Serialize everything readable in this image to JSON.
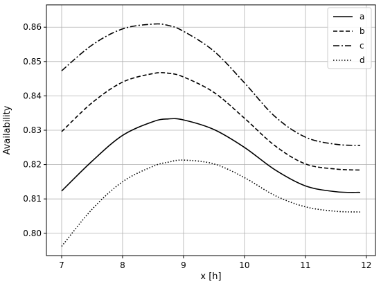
{
  "chart_data": {
    "type": "line",
    "xlabel": "x [h]",
    "ylabel": "Availability",
    "xlim": [
      6.75,
      12.15
    ],
    "ylim": [
      0.7935,
      0.8665
    ],
    "xticks": [
      7,
      8,
      9,
      10,
      11,
      12
    ],
    "yticks": [
      0.8,
      0.81,
      0.82,
      0.83,
      0.84,
      0.85,
      0.86
    ],
    "xtick_labels": [
      "7",
      "8",
      "9",
      "10",
      "11",
      "12"
    ],
    "ytick_labels": [
      "0.80",
      "0.81",
      "0.82",
      "0.83",
      "0.84",
      "0.85",
      "0.86"
    ],
    "grid": true,
    "legend_position": "top-right",
    "x": [
      7.0,
      7.5,
      8.0,
      8.5,
      8.75,
      9.0,
      9.5,
      10.0,
      10.5,
      11.0,
      11.5,
      11.9
    ],
    "series": [
      {
        "name": "a",
        "style": "solid",
        "values": [
          0.8123,
          0.821,
          0.8285,
          0.8325,
          0.8333,
          0.833,
          0.8302,
          0.825,
          0.8185,
          0.8138,
          0.8121,
          0.8119
        ]
      },
      {
        "name": "b",
        "style": "dashed",
        "values": [
          0.8296,
          0.838,
          0.844,
          0.8465,
          0.8466,
          0.8455,
          0.841,
          0.8335,
          0.8255,
          0.8202,
          0.8187,
          0.8184
        ]
      },
      {
        "name": "c",
        "style": "dashdot",
        "values": [
          0.8473,
          0.8548,
          0.8595,
          0.8609,
          0.8605,
          0.8588,
          0.853,
          0.8438,
          0.834,
          0.828,
          0.8259,
          0.8256
        ]
      },
      {
        "name": "d",
        "style": "dotted",
        "values": [
          0.7962,
          0.807,
          0.815,
          0.8195,
          0.8207,
          0.8213,
          0.8202,
          0.8162,
          0.811,
          0.8077,
          0.8064,
          0.8062
        ]
      }
    ]
  }
}
